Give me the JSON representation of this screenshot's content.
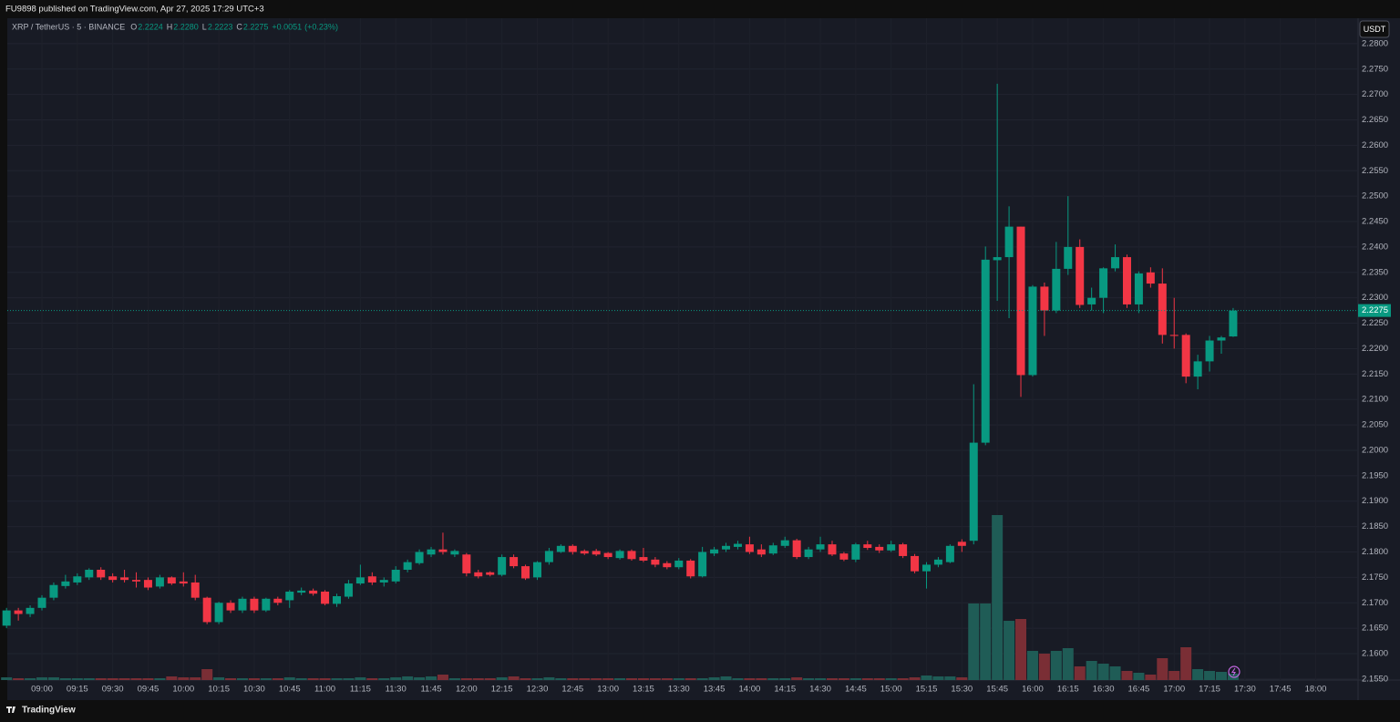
{
  "page_header": "FU9898 published on TradingView.com, Apr 27, 2025 17:29 UTC+3",
  "brand": "TradingView",
  "chart_data": {
    "type": "candlestick",
    "symbol": "XRP / TetherUS · 5 · BINANCE",
    "header_fields": [
      {
        "key": "O",
        "value": 2.2224,
        "label": "2.2224"
      },
      {
        "key": "H",
        "value": 2.228,
        "label": "2.2280"
      },
      {
        "key": "L",
        "value": 2.2223,
        "label": "2.2223"
      },
      {
        "key": "C",
        "value": 2.2275,
        "label": "2.2275"
      }
    ],
    "change": {
      "value": 0.0051,
      "label": "+0.0051"
    },
    "change_pct": {
      "value": 0.23,
      "label": "(+0.23%)"
    },
    "currency": "USDT",
    "last_price": {
      "value": 2.2275,
      "label": "2.2275"
    },
    "up_color": "#089981",
    "down_color": "#f23645",
    "up_volume_color": "#1f5c56",
    "down_volume_color": "#7a2e35",
    "grid": true,
    "x": [
      "08:45",
      "08:50",
      "08:55",
      "09:00",
      "09:05",
      "09:10",
      "09:15",
      "09:20",
      "09:25",
      "09:30",
      "09:35",
      "09:40",
      "09:45",
      "09:50",
      "09:55",
      "10:00",
      "10:05",
      "10:10",
      "10:15",
      "10:20",
      "10:25",
      "10:30",
      "10:35",
      "10:40",
      "10:45",
      "10:50",
      "10:55",
      "11:00",
      "11:05",
      "11:10",
      "11:15",
      "11:20",
      "11:25",
      "11:30",
      "11:35",
      "11:40",
      "11:45",
      "11:50",
      "11:55",
      "12:00",
      "12:05",
      "12:10",
      "12:15",
      "12:20",
      "12:25",
      "12:30",
      "12:35",
      "12:40",
      "12:45",
      "12:50",
      "12:55",
      "13:00",
      "13:05",
      "13:10",
      "13:15",
      "13:20",
      "13:25",
      "13:30",
      "13:35",
      "13:40",
      "13:45",
      "13:50",
      "13:55",
      "14:00",
      "14:05",
      "14:10",
      "14:15",
      "14:20",
      "14:25",
      "14:30",
      "14:35",
      "14:40",
      "14:45",
      "14:50",
      "14:55",
      "15:00",
      "15:05",
      "15:10",
      "15:15",
      "15:20",
      "15:25",
      "15:30",
      "15:35",
      "15:40",
      "15:45",
      "15:50",
      "15:55",
      "16:00",
      "16:05",
      "16:10",
      "16:15",
      "16:20",
      "16:25",
      "16:30",
      "16:35",
      "16:40",
      "16:45",
      "16:50",
      "16:55",
      "17:00",
      "17:05",
      "17:10",
      "17:15",
      "17:20",
      "17:25"
    ],
    "open": [
      2.1655,
      2.1685,
      2.1678,
      2.169,
      2.171,
      2.1733,
      2.174,
      2.175,
      2.1765,
      2.1752,
      2.175,
      2.1745,
      2.1745,
      2.1732,
      2.175,
      2.1742,
      2.174,
      2.171,
      2.1662,
      2.17,
      2.1685,
      2.1708,
      2.1685,
      2.1708,
      2.1705,
      2.172,
      2.1724,
      2.1722,
      2.1698,
      2.1712,
      2.1738,
      2.1752,
      2.174,
      2.1742,
      2.1765,
      2.1778,
      2.1795,
      2.1805,
      2.1795,
      2.1795,
      2.176,
      2.176,
      2.1755,
      2.179,
      2.1772,
      2.175,
      2.178,
      2.18,
      2.1812,
      2.1802,
      2.1802,
      2.1798,
      2.1788,
      2.1802,
      2.179,
      2.1785,
      2.1778,
      2.177,
      2.1783,
      2.1752,
      2.1797,
      2.1805,
      2.181,
      2.1815,
      2.1805,
      2.1797,
      2.1812,
      2.1823,
      2.179,
      2.1805,
      2.1815,
      2.1797,
      2.1785,
      2.1815,
      2.181,
      2.1803,
      2.1815,
      2.1792,
      2.1762,
      2.1775,
      2.178,
      2.182,
      2.1822,
      2.2015,
      2.2374,
      2.238,
      2.244,
      2.2148,
      2.2322,
      2.2275,
      2.2357,
      2.24,
      2.2287,
      2.23,
      2.2358,
      2.238,
      2.2287,
      2.235,
      2.2328,
      2.2227,
      2.2227,
      2.2145,
      2.2175,
      2.2216,
      2.2224
    ],
    "high": [
      2.169,
      2.169,
      2.1695,
      2.1715,
      2.174,
      2.1755,
      2.1758,
      2.1768,
      2.177,
      2.1758,
      2.1765,
      2.176,
      2.175,
      2.1755,
      2.1752,
      2.176,
      2.1755,
      2.1712,
      2.1702,
      2.1705,
      2.1712,
      2.1712,
      2.171,
      2.1712,
      2.1725,
      2.173,
      2.1728,
      2.1725,
      2.1718,
      2.1745,
      2.1775,
      2.176,
      2.175,
      2.1772,
      2.1785,
      2.1805,
      2.181,
      2.1838,
      2.1805,
      2.1798,
      2.1765,
      2.1762,
      2.1795,
      2.1795,
      2.1775,
      2.1782,
      2.1808,
      2.1815,
      2.1815,
      2.1805,
      2.1806,
      2.18,
      2.1805,
      2.1805,
      2.1808,
      2.179,
      2.1782,
      2.1788,
      2.1786,
      2.181,
      2.181,
      2.1818,
      2.1822,
      2.183,
      2.1815,
      2.1818,
      2.183,
      2.1826,
      2.181,
      2.183,
      2.1822,
      2.18,
      2.1818,
      2.1822,
      2.1815,
      2.1822,
      2.1818,
      2.1796,
      2.178,
      2.179,
      2.1815,
      2.1825,
      2.213,
      2.2401,
      2.2721,
      2.248,
      2.244,
      2.2325,
      2.233,
      2.241,
      2.25,
      2.2415,
      2.232,
      2.236,
      2.2405,
      2.2385,
      2.2352,
      2.236,
      2.2358,
      2.23,
      2.223,
      2.2188,
      2.2225,
      2.2225,
      2.228
    ],
    "low": [
      2.165,
      2.1665,
      2.1672,
      2.1685,
      2.1705,
      2.1728,
      2.1735,
      2.1745,
      2.1745,
      2.174,
      2.174,
      2.173,
      2.1725,
      2.1728,
      2.1735,
      2.1732,
      2.1705,
      2.1658,
      2.1658,
      2.168,
      2.168,
      2.168,
      2.1682,
      2.1695,
      2.169,
      2.1715,
      2.1714,
      2.1695,
      2.1692,
      2.1708,
      2.1735,
      2.1735,
      2.1732,
      2.1738,
      2.176,
      2.1775,
      2.179,
      2.1795,
      2.179,
      2.1752,
      2.1748,
      2.1752,
      2.1752,
      2.1768,
      2.1745,
      2.1745,
      2.1775,
      2.1798,
      2.1795,
      2.1794,
      2.1792,
      2.1786,
      2.1785,
      2.1783,
      2.178,
      2.177,
      2.1766,
      2.1766,
      2.1748,
      2.175,
      2.1792,
      2.18,
      2.1805,
      2.1796,
      2.179,
      2.1794,
      2.1808,
      2.1786,
      2.1786,
      2.18,
      2.1792,
      2.1782,
      2.178,
      2.1804,
      2.1798,
      2.18,
      2.1788,
      2.1758,
      2.1728,
      2.177,
      2.1778,
      2.18,
      2.1815,
      2.201,
      2.2294,
      2.226,
      2.2105,
      2.2145,
      2.2225,
      2.227,
      2.2345,
      2.228,
      2.2275,
      2.227,
      2.2352,
      2.228,
      2.227,
      2.232,
      2.221,
      2.22,
      2.2132,
      2.212,
      2.2155,
      2.219,
      2.2223
    ],
    "close": [
      2.1685,
      2.1678,
      2.169,
      2.171,
      2.1735,
      2.1742,
      2.1752,
      2.1765,
      2.175,
      2.1745,
      2.1745,
      2.1742,
      2.173,
      2.175,
      2.1738,
      2.1738,
      2.171,
      2.1662,
      2.17,
      2.1685,
      2.1708,
      2.1685,
      2.1708,
      2.17,
      2.1722,
      2.1724,
      2.1718,
      2.1698,
      2.1713,
      2.1738,
      2.175,
      2.174,
      2.1745,
      2.1765,
      2.178,
      2.18,
      2.1805,
      2.18,
      2.1802,
      2.1758,
      2.1752,
      2.1755,
      2.179,
      2.1772,
      2.1748,
      2.178,
      2.1802,
      2.1812,
      2.18,
      2.1797,
      2.1795,
      2.179,
      2.1802,
      2.1786,
      2.1783,
      2.1775,
      2.177,
      2.1783,
      2.1752,
      2.18,
      2.1805,
      2.1812,
      2.1816,
      2.18,
      2.1795,
      2.1813,
      2.1823,
      2.179,
      2.1805,
      2.1815,
      2.1795,
      2.1785,
      2.1815,
      2.1808,
      2.1803,
      2.1815,
      2.1792,
      2.1762,
      2.1775,
      2.1785,
      2.1812,
      2.1812,
      2.2015,
      2.2375,
      2.238,
      2.244,
      2.2148,
      2.2322,
      2.2275,
      2.2357,
      2.24,
      2.2286,
      2.23,
      2.2358,
      2.238,
      2.2287,
      2.2348,
      2.2328,
      2.2227,
      2.2225,
      2.2145,
      2.2175,
      2.2216,
      2.2222,
      2.2275
    ],
    "volume": [
      3,
      2,
      2,
      3,
      3,
      2,
      2,
      2,
      2,
      2,
      2,
      2,
      2,
      2,
      4,
      3,
      3,
      12,
      3,
      2,
      2,
      2,
      2,
      2,
      3,
      2,
      2,
      2,
      2,
      2,
      3,
      2,
      2,
      3,
      4,
      3,
      4,
      6,
      2,
      2,
      2,
      2,
      3,
      4,
      2,
      2,
      3,
      2,
      2,
      2,
      2,
      2,
      2,
      2,
      2,
      2,
      2,
      2,
      2,
      2,
      3,
      4,
      2,
      2,
      2,
      2,
      2,
      3,
      2,
      2,
      2,
      2,
      2,
      2,
      2,
      2,
      2,
      3,
      5,
      4,
      4,
      3,
      84,
      84,
      181,
      65,
      67,
      32,
      29,
      32,
      35,
      15,
      21,
      18,
      15,
      10,
      8,
      6,
      24,
      10,
      36,
      12,
      10,
      9,
      7
    ],
    "volume_lim": [
      0,
      400
    ],
    "ylim": [
      2.1548,
      2.285
    ],
    "yticks": [
      {
        "value": 2.28,
        "label": "2.2800"
      },
      {
        "value": 2.275,
        "label": "2.2750"
      },
      {
        "value": 2.27,
        "label": "2.2700"
      },
      {
        "value": 2.265,
        "label": "2.2650"
      },
      {
        "value": 2.26,
        "label": "2.2600"
      },
      {
        "value": 2.255,
        "label": "2.2550"
      },
      {
        "value": 2.25,
        "label": "2.2500"
      },
      {
        "value": 2.245,
        "label": "2.2450"
      },
      {
        "value": 2.24,
        "label": "2.2400"
      },
      {
        "value": 2.235,
        "label": "2.2350"
      },
      {
        "value": 2.23,
        "label": "2.2300"
      },
      {
        "value": 2.225,
        "label": "2.2250"
      },
      {
        "value": 2.22,
        "label": "2.2200"
      },
      {
        "value": 2.215,
        "label": "2.2150"
      },
      {
        "value": 2.21,
        "label": "2.2100"
      },
      {
        "value": 2.205,
        "label": "2.2050"
      },
      {
        "value": 2.2,
        "label": "2.2000"
      },
      {
        "value": 2.195,
        "label": "2.1950"
      },
      {
        "value": 2.19,
        "label": "2.1900"
      },
      {
        "value": 2.185,
        "label": "2.1850"
      },
      {
        "value": 2.18,
        "label": "2.1800"
      },
      {
        "value": 2.175,
        "label": "2.1750"
      },
      {
        "value": 2.17,
        "label": "2.1700"
      },
      {
        "value": 2.165,
        "label": "2.1650"
      },
      {
        "value": 2.16,
        "label": "2.1600"
      },
      {
        "value": 2.155,
        "label": "2.1550"
      }
    ],
    "xticks": [
      "09:00",
      "09:15",
      "09:30",
      "09:45",
      "10:00",
      "10:15",
      "10:30",
      "10:45",
      "11:00",
      "11:15",
      "11:30",
      "11:45",
      "12:00",
      "12:15",
      "12:30",
      "12:45",
      "13:00",
      "13:15",
      "13:30",
      "13:45",
      "14:00",
      "14:15",
      "14:30",
      "14:45",
      "15:00",
      "15:15",
      "15:30",
      "15:45",
      "16:00",
      "16:15",
      "16:30",
      "16:45",
      "17:00",
      "17:15",
      "17:30",
      "17:45",
      "18:00"
    ]
  }
}
